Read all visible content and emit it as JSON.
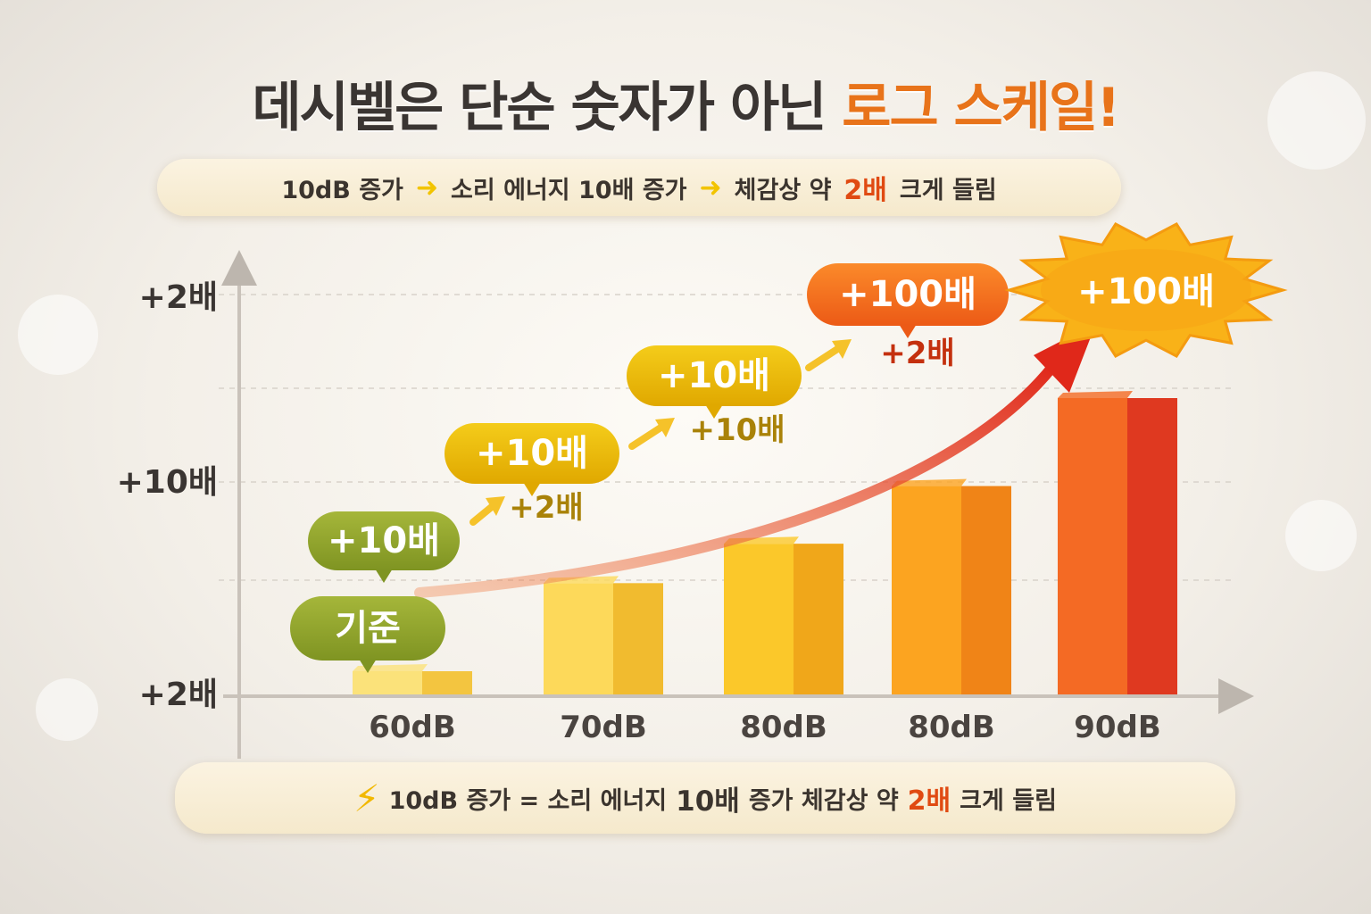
{
  "title": {
    "main": "데시벨은 단순 숫자가 아닌 ",
    "accent": "로그 스케일!"
  },
  "top_pill": {
    "part1": "10dB 증가",
    "part2": "소리 에너지 10배 증가",
    "part3": "체감상 약",
    "highlight": "2배",
    "part4": "크게 들림"
  },
  "bottom_pill": {
    "part1": "10dB 증가 = 소리 에너지",
    "part2": "10배",
    "part3": "증가  체감상 약",
    "highlight": "2배",
    "part4": "크게 들림"
  },
  "colors": {
    "accent": "#e8731a",
    "highlight": "#e04a12",
    "arrow": "#e03a1e",
    "bubble_green": "#8aa12a",
    "bubble_yellow": "#e9b800",
    "bubble_orange": "#f07a1a"
  },
  "chart_data": {
    "type": "bar",
    "categories": [
      "60dB",
      "70dB",
      "80dB",
      "80dB",
      "90dB"
    ],
    "values": [
      1,
      3.9,
      5.2,
      7.1,
      10
    ],
    "y_tick_labels": [
      "+2배",
      "+10배",
      "+2배"
    ],
    "bar_colors": [
      [
        "#fbe27a",
        "#f2c23a"
      ],
      [
        "#fdd95a",
        "#f0b72a"
      ],
      [
        "#fbc82a",
        "#eea318"
      ],
      [
        "#fca420",
        "#ee8116"
      ],
      [
        "#f46a24",
        "#dd3420"
      ]
    ],
    "annotations": [
      {
        "bubble": "기준",
        "style": "green"
      },
      {
        "bubble": "+10배",
        "style": "green",
        "note": "+2배",
        "note_color": "#a98208"
      },
      {
        "bubble": "+10배",
        "style": "yellow",
        "note": "+10배",
        "note_color": "#a98208"
      },
      {
        "bubble": "+10배",
        "style": "yellow",
        "note": "+2배",
        "note_color": "#c4300e"
      },
      {
        "bubble": "+100배",
        "style": "orange"
      },
      {
        "bubble": "+100배",
        "style": "burst"
      }
    ]
  }
}
